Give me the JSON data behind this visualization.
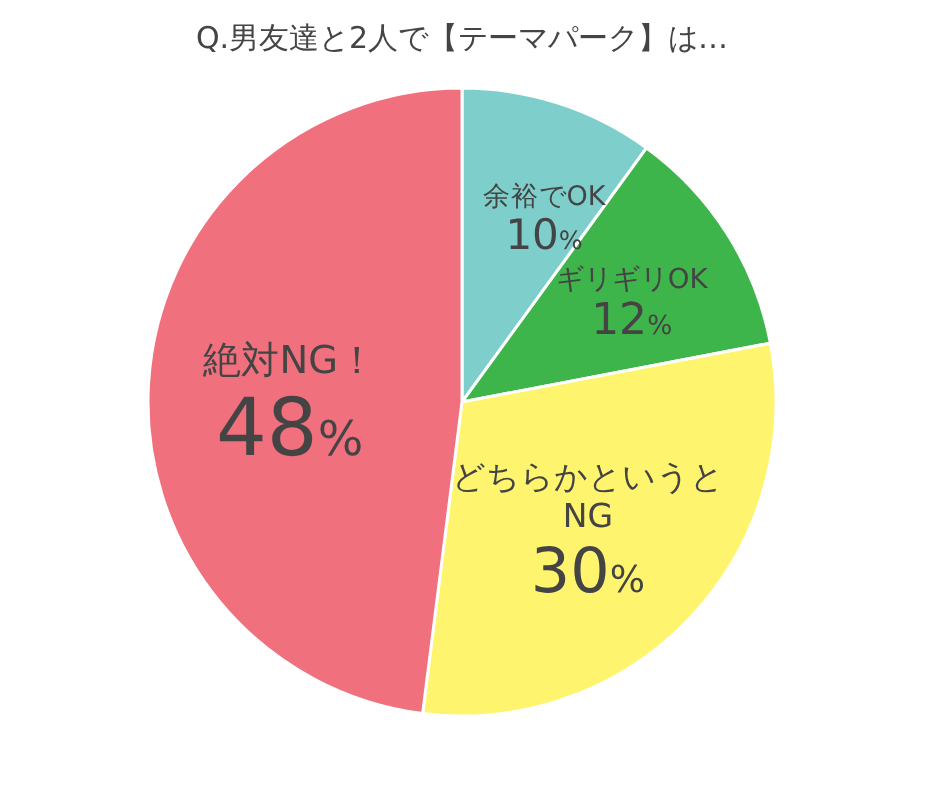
{
  "chart_data": {
    "type": "pie",
    "title": "Q.男友達と2人で【テーマパーク】は…",
    "categories": [
      "余裕でOK",
      "ギリギリOK",
      "どちらかというとNG",
      "絶対NG！"
    ],
    "values": [
      10,
      12,
      30,
      48
    ],
    "colors": [
      "#7ecfcb",
      "#3db54a",
      "#fff46e",
      "#f0707e"
    ],
    "value_labels": [
      "10%",
      "12%",
      "30%",
      "48%"
    ]
  }
}
